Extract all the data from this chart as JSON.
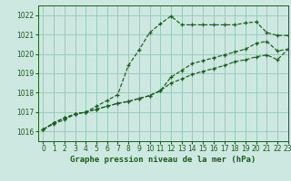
{
  "title": "Graphe pression niveau de la mer (hPa)",
  "bg_color": "#cce8e0",
  "grid_color": "#99ccbb",
  "line_color": "#1a5c1a",
  "xlim": [
    -0.5,
    23
  ],
  "ylim": [
    1015.5,
    1022.5
  ],
  "yticks": [
    1016,
    1017,
    1018,
    1019,
    1020,
    1021,
    1022
  ],
  "xticks": [
    0,
    1,
    2,
    3,
    4,
    5,
    6,
    7,
    8,
    9,
    10,
    11,
    12,
    13,
    14,
    15,
    16,
    17,
    18,
    19,
    20,
    21,
    22,
    23
  ],
  "line1_x": [
    0,
    1,
    2,
    3,
    4,
    5,
    6,
    7,
    8,
    9,
    10,
    11,
    12,
    13,
    14,
    15,
    16,
    17,
    18,
    19,
    20,
    21,
    22,
    23
  ],
  "line1": [
    1016.1,
    1016.4,
    1016.6,
    1016.9,
    1017.0,
    1017.3,
    1017.6,
    1017.9,
    1019.4,
    1020.2,
    1021.1,
    1021.55,
    1021.95,
    1021.5,
    1021.5,
    1021.5,
    1021.5,
    1021.5,
    1021.5,
    1021.6,
    1021.65,
    1021.1,
    1020.95,
    1020.95
  ],
  "line2_x": [
    0,
    1,
    2,
    3,
    4,
    5,
    6,
    7,
    8,
    9,
    10,
    11,
    12,
    13,
    14,
    15,
    16,
    17,
    18,
    19,
    20,
    21,
    22,
    23
  ],
  "line2": [
    1016.1,
    1016.45,
    1016.7,
    1016.9,
    1017.0,
    1017.15,
    1017.3,
    1017.45,
    1017.55,
    1017.7,
    1017.85,
    1018.1,
    1018.8,
    1019.15,
    1019.5,
    1019.65,
    1019.8,
    1019.95,
    1020.1,
    1020.25,
    1020.55,
    1020.65,
    1020.15,
    1020.25
  ],
  "line3_x": [
    0,
    1,
    2,
    3,
    4,
    5,
    6,
    7,
    8,
    9,
    10,
    11,
    12,
    13,
    14,
    15,
    16,
    17,
    18,
    19,
    20,
    21,
    22,
    23
  ],
  "line3": [
    1016.1,
    1016.45,
    1016.7,
    1016.9,
    1017.0,
    1017.15,
    1017.3,
    1017.45,
    1017.55,
    1017.7,
    1017.85,
    1018.1,
    1018.5,
    1018.7,
    1018.95,
    1019.1,
    1019.25,
    1019.4,
    1019.6,
    1019.7,
    1019.85,
    1019.95,
    1019.7,
    1020.25
  ],
  "figsize": [
    3.2,
    2.0
  ],
  "dpi": 100,
  "tick_labelsize": 5.5,
  "xlabel_fontsize": 6.5
}
